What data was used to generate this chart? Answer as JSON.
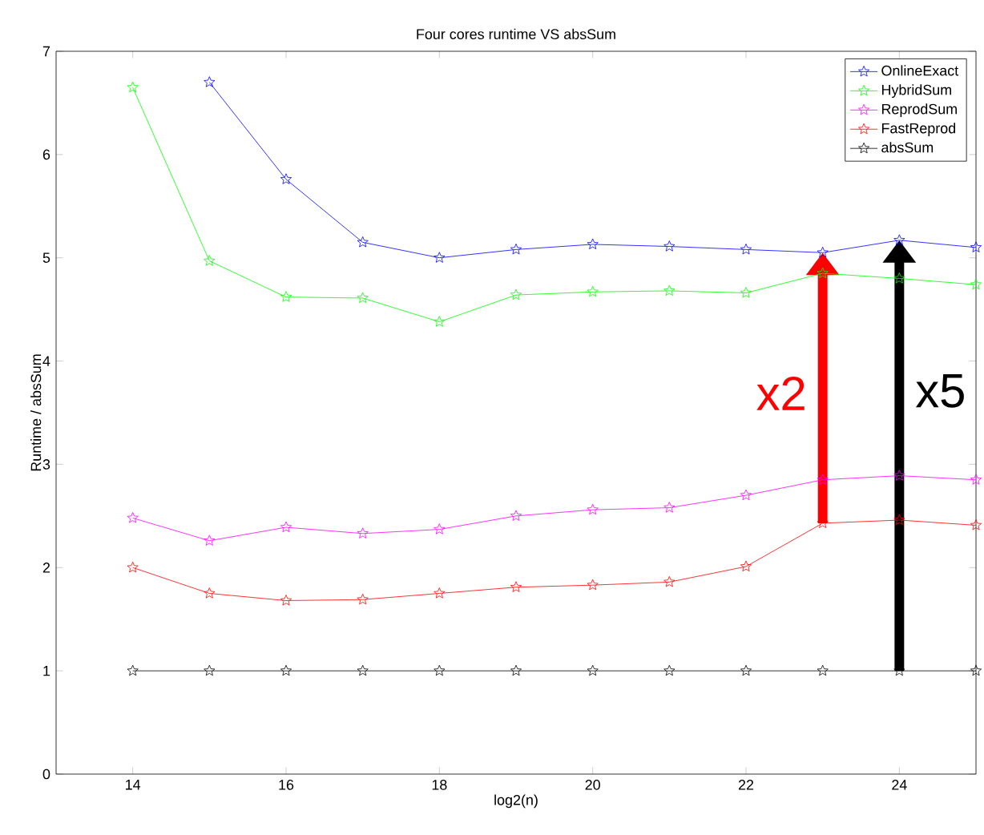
{
  "chart_data": {
    "type": "line",
    "title": "Four cores runtime VS absSum",
    "xlabel": "log2(n)",
    "ylabel": "Runtime / absSum",
    "x": [
      14,
      15,
      16,
      17,
      18,
      19,
      20,
      21,
      22,
      23,
      24,
      25
    ],
    "series": [
      {
        "name": "OnlineExact",
        "color": "#0000ff",
        "values": [
          null,
          6.7,
          5.76,
          5.15,
          5.0,
          5.08,
          5.13,
          5.11,
          5.08,
          5.05,
          5.17,
          5.1
        ]
      },
      {
        "name": "HybridSum",
        "color": "#00ff00",
        "values": [
          6.65,
          4.97,
          4.62,
          4.61,
          4.38,
          4.64,
          4.67,
          4.68,
          4.66,
          4.85,
          4.8,
          4.74
        ]
      },
      {
        "name": "ReprodSum",
        "color": "#ff00ff",
        "values": [
          2.48,
          2.26,
          2.39,
          2.33,
          2.37,
          2.5,
          2.56,
          2.58,
          2.7,
          2.85,
          2.89,
          2.85
        ]
      },
      {
        "name": "FastReprod",
        "color": "#ff0000",
        "values": [
          2.0,
          1.75,
          1.68,
          1.69,
          1.75,
          1.81,
          1.83,
          1.86,
          2.01,
          2.43,
          2.46,
          2.41
        ]
      },
      {
        "name": "absSum",
        "color": "#000000",
        "values": [
          1,
          1,
          1,
          1,
          1,
          1,
          1,
          1,
          1,
          1,
          1,
          1
        ]
      }
    ],
    "annotations": [
      "x2",
      "x5"
    ],
    "xlim": [
      13,
      25
    ],
    "ylim": [
      0,
      7
    ],
    "xticks": [
      14,
      16,
      18,
      20,
      22,
      24
    ],
    "yticks": [
      0,
      1,
      2,
      3,
      4,
      5,
      6,
      7
    ],
    "legend": "top right",
    "marker": "star",
    "line_style": "solid",
    "grid": false
  }
}
